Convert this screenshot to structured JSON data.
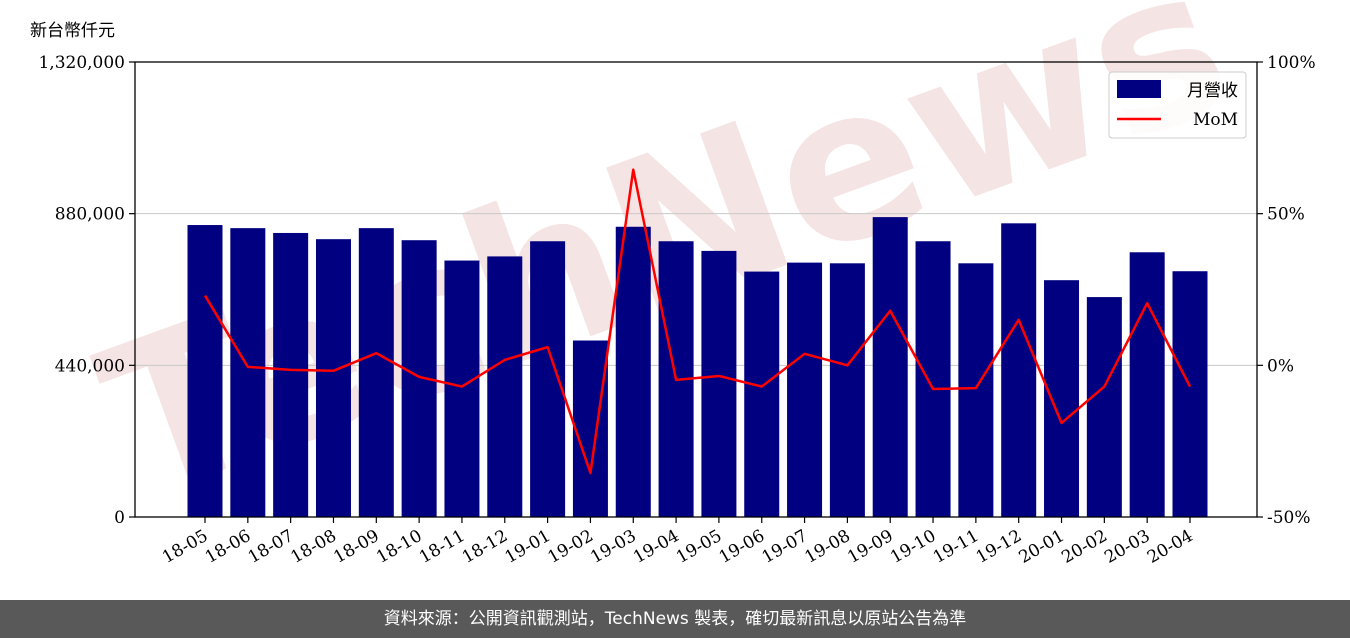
{
  "chart_data": {
    "type": "bar",
    "unit_label": "新台幣仟元",
    "categories": [
      "18-05",
      "18-06",
      "18-07",
      "18-08",
      "18-09",
      "18-10",
      "18-11",
      "18-12",
      "19-01",
      "19-02",
      "19-03",
      "19-04",
      "19-05",
      "19-06",
      "19-07",
      "19-08",
      "19-09",
      "19-10",
      "19-11",
      "19-12",
      "20-01",
      "20-02",
      "20-03",
      "20-04"
    ],
    "series": [
      {
        "name": "月營收",
        "axis": "left",
        "type": "bar",
        "color": "#000080",
        "values": [
          847000,
          838000,
          824000,
          806000,
          838000,
          803000,
          744000,
          756000,
          800000,
          512000,
          842000,
          800000,
          772000,
          712000,
          738000,
          736000,
          870000,
          800000,
          736000,
          852000,
          687000,
          638000,
          768000,
          713000
        ]
      },
      {
        "name": "MoM",
        "axis": "right",
        "type": "line",
        "color": "#ff0000",
        "values": [
          23.0,
          -0.5,
          -1.5,
          -1.8,
          4.0,
          -3.8,
          -7.0,
          1.8,
          6.0,
          -35.5,
          64.5,
          -4.8,
          -3.5,
          -7.0,
          3.8,
          0.0,
          18.0,
          -7.8,
          -7.5,
          15.0,
          -19.0,
          -7.0,
          20.5,
          -7.0
        ]
      }
    ],
    "ylim_left": [
      0,
      1320000
    ],
    "yticks_left": [
      "0",
      "440,000",
      "880,000",
      "1,320,000"
    ],
    "ylim_right": [
      -50,
      100
    ],
    "yticks_right": [
      "-50%",
      "0%",
      "50%",
      "100%"
    ],
    "grid": true,
    "legend": "top-right",
    "legend_entries": [
      "月營收",
      "MoM"
    ]
  },
  "footer": {
    "text": "資料來源：公開資訊觀測站，TechNews 製表，確切最新訊息以原站公告為準"
  },
  "watermark": {
    "text": "TechNews",
    "color": "#f2d9d9"
  }
}
